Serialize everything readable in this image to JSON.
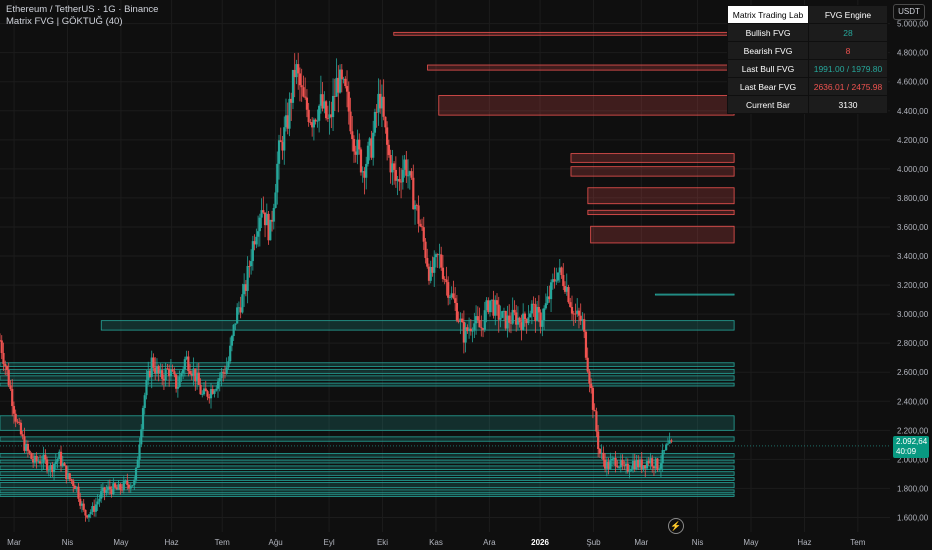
{
  "header": {
    "symbol_line": "Ethereum / TetherUS · 1G · Binance",
    "indicator_line": "Matrix FVG | GÖKTUĞ (40)"
  },
  "toolbar": {
    "currency": "USDT"
  },
  "last_price": {
    "value": "2.092,64",
    "countdown": "40:09"
  },
  "icons": {
    "alert": "lightning-icon"
  },
  "table": {
    "title_left": "Matrix Trading Lab",
    "title_right": "FVG Engine",
    "rows": [
      {
        "key": "Bullish FVG",
        "value": "28",
        "color": "#26a69a"
      },
      {
        "key": "Bearish FVG",
        "value": "8",
        "color": "#ef5350"
      },
      {
        "key": "Last Bull FVG",
        "value": "1991.00 / 1979.80",
        "color": "#26a69a"
      },
      {
        "key": "Last Bear FVG",
        "value": "2636.01 / 2475.98",
        "color": "#ef5350"
      },
      {
        "key": "Current Bar",
        "value": "3130",
        "color": "#ffffff"
      }
    ]
  },
  "colors": {
    "up": "#26a69a",
    "down": "#ef5350",
    "bull_zone_fill": "rgba(38,166,154,0.22)",
    "bull_zone_stroke": "#26a69a",
    "bear_zone_fill": "rgba(239,83,80,0.22)",
    "bear_zone_stroke": "#ef5350",
    "grid": "#1c1c1c",
    "text": "#b2b5be",
    "background": "#0f0f0f"
  },
  "chart_data": {
    "type": "candlestick",
    "title": "Ethereum / TetherUS · 1G · Binance",
    "ylim": [
      1500,
      5080
    ],
    "y_ticks": [
      1600,
      1800,
      2000,
      2200,
      2400,
      2600,
      2800,
      3000,
      3200,
      3400,
      3600,
      3800,
      4000,
      4200,
      4400,
      4600,
      4800,
      5000
    ],
    "y_tick_labels": [
      "1.600,00",
      "1.800,00",
      "2.000,00",
      "2.200,00",
      "2.400,00",
      "2.600,00",
      "2.800,00",
      "3.000,00",
      "3.200,00",
      "3.400,00",
      "3.600,00",
      "3.800,00",
      "4.000,00",
      "4.200,00",
      "4.400,00",
      "4.600,00",
      "4.800,00",
      "5.000,00"
    ],
    "x_labels": [
      "Mar",
      "Nis",
      "May",
      "Haz",
      "Tem",
      "Ağu",
      "Eyl",
      "Eki",
      "Kas",
      "Ara",
      "2026",
      "Şub",
      "Mar",
      "Nis",
      "May",
      "Haz",
      "Tem"
    ],
    "x_label_bold": "2026",
    "x_label_index": [
      0.5,
      2.4,
      4.3,
      6.1,
      7.9,
      9.8,
      11.7,
      13.6,
      15.5,
      17.4,
      19.2,
      21.1,
      22.8,
      24.8,
      26.7,
      28.6,
      30.5
    ],
    "x_range": [
      0,
      31.5
    ],
    "series_close": [
      [
        0,
        2820
      ],
      [
        0.3,
        2550
      ],
      [
        0.6,
        2250
      ],
      [
        0.9,
        2080
      ],
      [
        1.2,
        1980
      ],
      [
        1.5,
        2000
      ],
      [
        1.8,
        1940
      ],
      [
        2.1,
        2020
      ],
      [
        2.4,
        1880
      ],
      [
        2.7,
        1820
      ],
      [
        3.0,
        1620
      ],
      [
        3.3,
        1650
      ],
      [
        3.6,
        1760
      ],
      [
        3.9,
        1800
      ],
      [
        4.2,
        1790
      ],
      [
        4.5,
        1830
      ],
      [
        4.8,
        1840
      ],
      [
        5.1,
        2400
      ],
      [
        5.4,
        2680
      ],
      [
        5.7,
        2560
      ],
      [
        6.0,
        2620
      ],
      [
        6.3,
        2500
      ],
      [
        6.6,
        2700
      ],
      [
        6.9,
        2600
      ],
      [
        7.2,
        2430
      ],
      [
        7.5,
        2480
      ],
      [
        7.8,
        2560
      ],
      [
        8.1,
        2650
      ],
      [
        8.4,
        3000
      ],
      [
        8.7,
        3150
      ],
      [
        9.0,
        3500
      ],
      [
        9.3,
        3760
      ],
      [
        9.6,
        3550
      ],
      [
        9.9,
        4100
      ],
      [
        10.2,
        4300
      ],
      [
        10.5,
        4700
      ],
      [
        10.8,
        4450
      ],
      [
        11.1,
        4350
      ],
      [
        11.4,
        4450
      ],
      [
        11.7,
        4300
      ],
      [
        12.0,
        4620
      ],
      [
        12.3,
        4500
      ],
      [
        12.6,
        4200
      ],
      [
        12.9,
        4000
      ],
      [
        13.2,
        4150
      ],
      [
        13.5,
        4520
      ],
      [
        13.8,
        4100
      ],
      [
        14.1,
        3900
      ],
      [
        14.4,
        4050
      ],
      [
        14.7,
        3800
      ],
      [
        15.0,
        3560
      ],
      [
        15.3,
        3250
      ],
      [
        15.6,
        3400
      ],
      [
        15.9,
        3200
      ],
      [
        16.2,
        3050
      ],
      [
        16.5,
        2850
      ],
      [
        16.8,
        2950
      ],
      [
        17.1,
        2900
      ],
      [
        17.4,
        3100
      ],
      [
        17.7,
        3000
      ],
      [
        18.0,
        2950
      ],
      [
        18.3,
        2980
      ],
      [
        18.6,
        2950
      ],
      [
        18.9,
        3050
      ],
      [
        19.2,
        2950
      ],
      [
        19.5,
        3100
      ],
      [
        19.8,
        3300
      ],
      [
        20.1,
        3220
      ],
      [
        20.4,
        3000
      ],
      [
        20.7,
        2950
      ],
      [
        21.0,
        2500
      ],
      [
        21.3,
        2050
      ],
      [
        21.6,
        1950
      ],
      [
        21.9,
        2000
      ],
      [
        22.2,
        1920
      ],
      [
        22.5,
        1980
      ],
      [
        22.8,
        1960
      ],
      [
        23.1,
        2000
      ],
      [
        23.4,
        1950
      ],
      [
        23.7,
        2080
      ],
      [
        23.9,
        2092.64
      ]
    ],
    "bear_zones": [
      {
        "x0": 14.0,
        "x1": 26.1,
        "top": 4940,
        "bottom": 4920
      },
      {
        "x0": 15.2,
        "x1": 26.1,
        "top": 4715,
        "bottom": 4680
      },
      {
        "x0": 15.6,
        "x1": 26.1,
        "top": 4505,
        "bottom": 4370
      },
      {
        "x0": 20.3,
        "x1": 26.1,
        "top": 4105,
        "bottom": 4045
      },
      {
        "x0": 20.3,
        "x1": 26.1,
        "top": 4015,
        "bottom": 3950
      },
      {
        "x0": 20.9,
        "x1": 26.1,
        "top": 3870,
        "bottom": 3760
      },
      {
        "x0": 20.9,
        "x1": 26.1,
        "top": 3715,
        "bottom": 3685
      },
      {
        "x0": 21.0,
        "x1": 26.1,
        "top": 3605,
        "bottom": 3490
      }
    ],
    "bull_zones": [
      {
        "x0": 23.3,
        "x1": 26.1,
        "top": 3138,
        "bottom": 3132
      },
      {
        "x0": 3.6,
        "x1": 26.1,
        "top": 2955,
        "bottom": 2890
      },
      {
        "x0": 0,
        "x1": 26.1,
        "top": 2665,
        "bottom": 2640
      },
      {
        "x0": 0,
        "x1": 26.1,
        "top": 2620,
        "bottom": 2590
      },
      {
        "x0": 0,
        "x1": 26.1,
        "top": 2575,
        "bottom": 2545
      },
      {
        "x0": 0,
        "x1": 26.1,
        "top": 2525,
        "bottom": 2505
      },
      {
        "x0": 0,
        "x1": 26.1,
        "top": 2300,
        "bottom": 2200
      },
      {
        "x0": 0,
        "x1": 26.1,
        "top": 2155,
        "bottom": 2125
      },
      {
        "x0": 0,
        "x1": 26.1,
        "top": 2040,
        "bottom": 2015
      },
      {
        "x0": 0,
        "x1": 26.1,
        "top": 1995,
        "bottom": 1975
      },
      {
        "x0": 0,
        "x1": 26.1,
        "top": 1955,
        "bottom": 1930
      },
      {
        "x0": 0,
        "x1": 26.1,
        "top": 1915,
        "bottom": 1890
      },
      {
        "x0": 0,
        "x1": 26.1,
        "top": 1875,
        "bottom": 1855
      },
      {
        "x0": 0,
        "x1": 26.1,
        "top": 1840,
        "bottom": 1805
      },
      {
        "x0": 0,
        "x1": 26.1,
        "top": 1790,
        "bottom": 1770
      },
      {
        "x0": 0,
        "x1": 26.1,
        "top": 1760,
        "bottom": 1745
      }
    ]
  }
}
